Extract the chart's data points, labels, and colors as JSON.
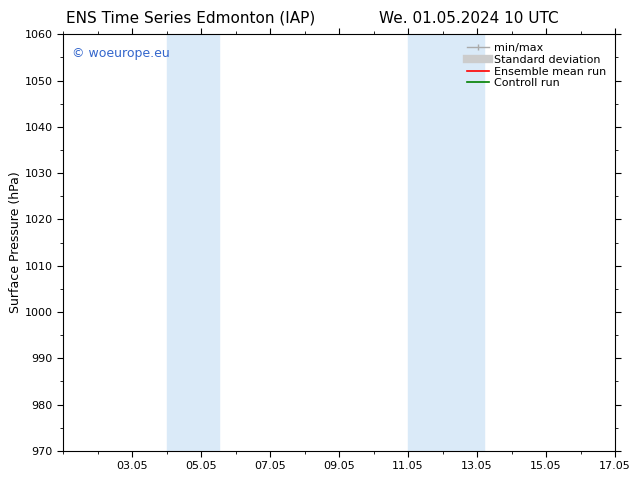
{
  "title_left": "ENS Time Series Edmonton (IAP)",
  "title_right": "We. 01.05.2024 10 UTC",
  "ylabel": "Surface Pressure (hPa)",
  "ylim": [
    970,
    1060
  ],
  "yticks": [
    970,
    980,
    990,
    1000,
    1010,
    1020,
    1030,
    1040,
    1050,
    1060
  ],
  "xlim": [
    1,
    17
  ],
  "x_tick_labels": [
    "03.05",
    "05.05",
    "07.05",
    "09.05",
    "11.05",
    "13.05",
    "15.05",
    "17.05"
  ],
  "x_tick_positions": [
    3,
    5,
    7,
    9,
    11,
    13,
    15,
    17
  ],
  "shaded_bands": [
    {
      "x_start": 4.0,
      "x_end": 5.5
    },
    {
      "x_start": 11.0,
      "x_end": 13.2
    }
  ],
  "shade_color": "#daeaf8",
  "watermark_text": "© woeurope.eu",
  "watermark_color": "#3366cc",
  "background_color": "#ffffff",
  "legend_items": [
    {
      "label": "min/max",
      "color": "#aaaaaa",
      "lw": 1.0
    },
    {
      "label": "Standard deviation",
      "color": "#cccccc",
      "lw": 6
    },
    {
      "label": "Ensemble mean run",
      "color": "#ff0000",
      "lw": 1.2
    },
    {
      "label": "Controll run",
      "color": "#008000",
      "lw": 1.2
    }
  ],
  "title_fontsize": 11,
  "axis_label_fontsize": 9,
  "tick_fontsize": 8,
  "legend_fontsize": 8,
  "watermark_fontsize": 9
}
